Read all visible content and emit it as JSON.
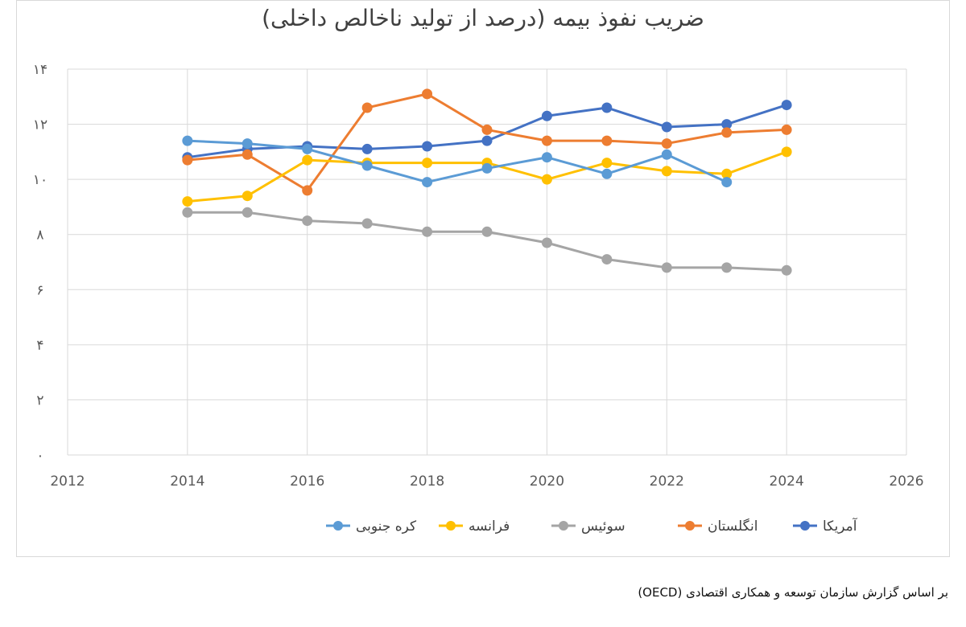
{
  "chart_data": {
    "type": "line",
    "title": "ضریب نفوذ بیمه (درصد از تولید ناخالص داخلی)",
    "xlabel": "",
    "ylabel": "",
    "xlim": [
      2012,
      2026
    ],
    "ylim": [
      0,
      14
    ],
    "x_ticks": [
      "2012",
      "2014",
      "2016",
      "2018",
      "2020",
      "2022",
      "2024",
      "2026"
    ],
    "y_ticks": [
      "۰",
      "۲",
      "۴",
      "۶",
      "۸",
      "۱۰",
      "۱۲",
      "۱۴"
    ],
    "grid": "horizontal and vertical",
    "legend_position": "bottom",
    "x": [
      2014,
      2015,
      2016,
      2017,
      2018,
      2019,
      2020,
      2021,
      2022,
      2023,
      2024
    ],
    "series": [
      {
        "name": "آمریکا",
        "color": "#4472c4",
        "values": [
          10.8,
          11.1,
          11.2,
          11.1,
          11.2,
          11.4,
          12.3,
          12.6,
          11.9,
          12.0,
          12.7
        ]
      },
      {
        "name": "انگلستان",
        "color": "#ed7d31",
        "values": [
          10.7,
          10.9,
          9.6,
          12.6,
          13.1,
          11.8,
          11.4,
          11.4,
          11.3,
          11.7,
          11.8
        ]
      },
      {
        "name": "سوئیس",
        "color": "#a5a5a5",
        "values": [
          8.8,
          8.8,
          8.5,
          8.4,
          8.1,
          8.1,
          7.7,
          7.1,
          6.8,
          6.8,
          6.7
        ]
      },
      {
        "name": "فرانسه",
        "color": "#ffc000",
        "values": [
          9.2,
          9.4,
          10.7,
          10.6,
          10.6,
          10.6,
          10.0,
          10.6,
          10.3,
          10.2,
          11.0
        ]
      },
      {
        "name": "کره جنوبی",
        "color": "#5b9bd5",
        "values": [
          11.4,
          11.3,
          11.1,
          10.5,
          9.9,
          10.4,
          10.8,
          10.2,
          10.9,
          9.9,
          null
        ]
      }
    ]
  },
  "footer": {
    "source_note": "بر اساس گزارش سازمان توسعه و همکاری اقتصادی (OECD)"
  }
}
